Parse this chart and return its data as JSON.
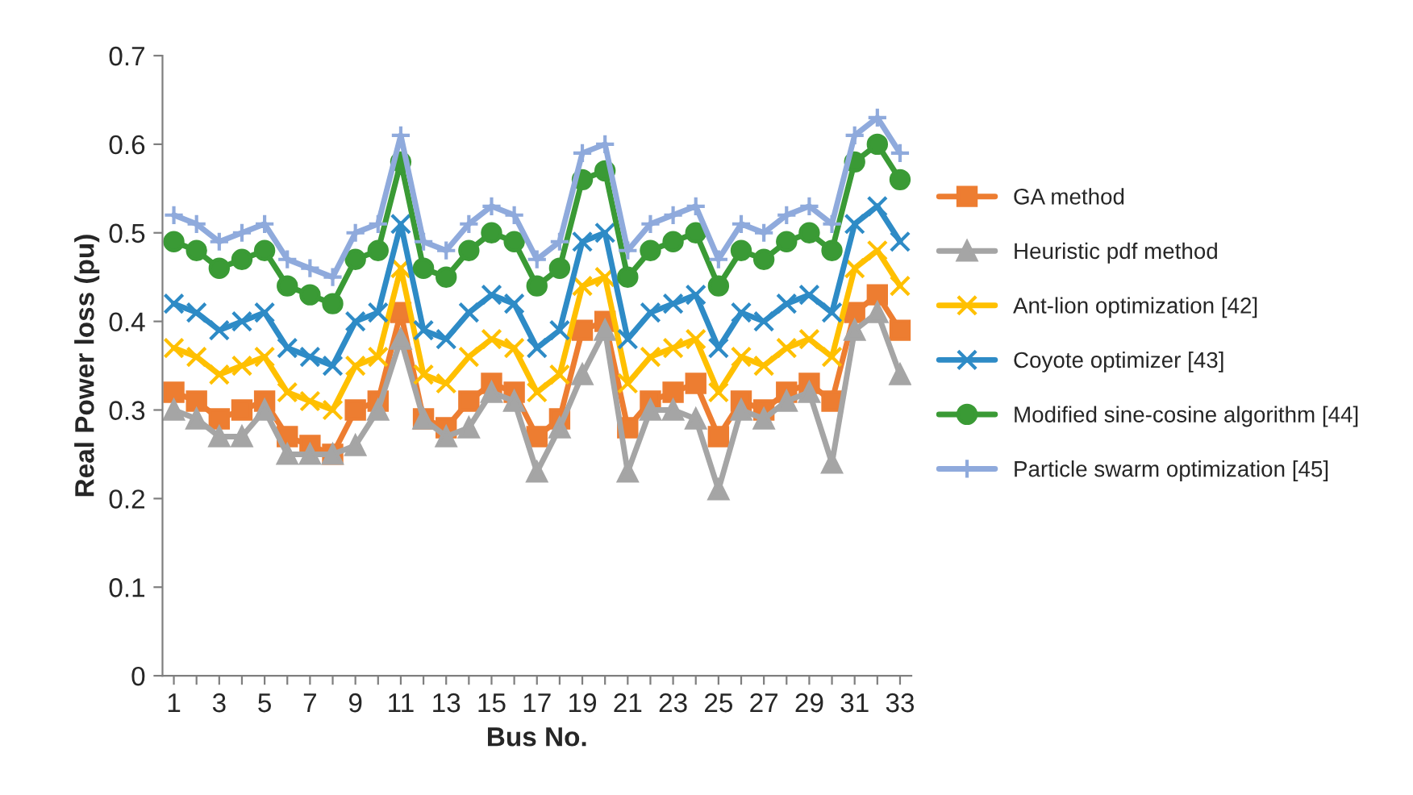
{
  "chart_data": {
    "type": "line",
    "xlabel": "Bus No.",
    "ylabel": "Real Power loss (pu)",
    "categories": [
      "1",
      null,
      "3",
      null,
      "5",
      null,
      "7",
      null,
      "9",
      null,
      "11",
      null,
      "13",
      null,
      "15",
      null,
      "17",
      null,
      "19",
      null,
      "21",
      null,
      "23",
      null,
      "25",
      null,
      "27",
      null,
      "29",
      null,
      "31",
      null,
      "33"
    ],
    "ylim": [
      0,
      0.7
    ],
    "yticks": [
      0,
      0.1,
      0.2,
      0.3,
      0.4,
      0.5,
      0.6,
      0.7
    ],
    "grid": false,
    "legend": "right",
    "line_style": "solid",
    "series": [
      {
        "name": "GA method",
        "color": "#ed7d31",
        "marker": "square",
        "values": [
          0.32,
          0.31,
          0.29,
          0.3,
          0.31,
          0.27,
          0.26,
          0.25,
          0.3,
          0.31,
          0.41,
          0.29,
          0.28,
          0.31,
          0.33,
          0.32,
          0.27,
          0.29,
          0.39,
          0.4,
          0.28,
          0.31,
          0.32,
          0.33,
          0.27,
          0.31,
          0.3,
          0.32,
          0.33,
          0.31,
          0.41,
          0.43,
          0.39
        ]
      },
      {
        "name": "Heuristic pdf method",
        "color": "#a5a5a5",
        "marker": "triangle",
        "values": [
          0.3,
          0.29,
          0.27,
          0.27,
          0.3,
          0.25,
          0.25,
          0.25,
          0.26,
          0.3,
          0.38,
          0.29,
          0.27,
          0.28,
          0.32,
          0.31,
          0.23,
          0.28,
          0.34,
          0.39,
          0.23,
          0.3,
          0.3,
          0.29,
          0.21,
          0.3,
          0.29,
          0.31,
          0.32,
          0.24,
          0.39,
          0.41,
          0.34
        ]
      },
      {
        "name": "Ant-lion optimization [42]",
        "color": "#ffc000",
        "marker": "cross",
        "values": [
          0.37,
          0.36,
          0.34,
          0.35,
          0.36,
          0.32,
          0.31,
          0.3,
          0.35,
          0.36,
          0.46,
          0.34,
          0.33,
          0.36,
          0.38,
          0.37,
          0.32,
          0.34,
          0.44,
          0.45,
          0.33,
          0.36,
          0.37,
          0.38,
          0.32,
          0.36,
          0.35,
          0.37,
          0.38,
          0.36,
          0.46,
          0.48,
          0.44
        ]
      },
      {
        "name": "Coyote optimizer [43]",
        "color": "#2e8bc6",
        "marker": "cross",
        "values": [
          0.42,
          0.41,
          0.39,
          0.4,
          0.41,
          0.37,
          0.36,
          0.35,
          0.4,
          0.41,
          0.51,
          0.39,
          0.38,
          0.41,
          0.43,
          0.42,
          0.37,
          0.39,
          0.49,
          0.5,
          0.38,
          0.41,
          0.42,
          0.43,
          0.37,
          0.41,
          0.4,
          0.42,
          0.43,
          0.41,
          0.51,
          0.53,
          0.49
        ]
      },
      {
        "name": "Modified sine-cosine algorithm [44]",
        "color": "#3a9a35",
        "marker": "circle",
        "values": [
          0.49,
          0.48,
          0.46,
          0.47,
          0.48,
          0.44,
          0.43,
          0.42,
          0.47,
          0.48,
          0.58,
          0.46,
          0.45,
          0.48,
          0.5,
          0.49,
          0.44,
          0.46,
          0.56,
          0.57,
          0.45,
          0.48,
          0.49,
          0.5,
          0.44,
          0.48,
          0.47,
          0.49,
          0.5,
          0.48,
          0.58,
          0.6,
          0.56
        ]
      },
      {
        "name": "Particle swarm optimization [45]",
        "color": "#8faadc",
        "marker": "plus",
        "values": [
          0.52,
          0.51,
          0.49,
          0.5,
          0.51,
          0.47,
          0.46,
          0.45,
          0.5,
          0.51,
          0.61,
          0.49,
          0.48,
          0.51,
          0.53,
          0.52,
          0.47,
          0.49,
          0.59,
          0.6,
          0.48,
          0.51,
          0.52,
          0.53,
          0.47,
          0.51,
          0.5,
          0.52,
          0.53,
          0.51,
          0.61,
          0.63,
          0.59
        ]
      }
    ]
  }
}
